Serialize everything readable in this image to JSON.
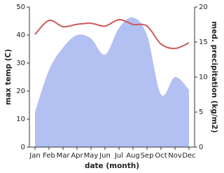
{
  "chart_data": {
    "type": "line-area",
    "xlabel": "date (month)",
    "ylabel": "max temp (C)",
    "y2label": "med. precipitation (kg/m2)",
    "categories": [
      "Jan",
      "Feb",
      "Mar",
      "Apr",
      "May",
      "Jun",
      "Jul",
      "Aug",
      "Sep",
      "Oct",
      "Nov",
      "Dec"
    ],
    "series": [
      {
        "color": "#cd5a5a",
        "kind": "line",
        "axis": "y",
        "values": [
          40.2,
          45.2,
          43,
          43.8,
          44.2,
          43.2,
          45.5,
          43.8,
          43.2,
          36.8,
          35.2,
          37.2
        ]
      },
      {
        "color": "#b3c0f2",
        "kind": "area",
        "axis": "y2",
        "values": [
          5,
          11,
          14.2,
          16,
          15.5,
          13.2,
          17,
          18.5,
          16,
          7.5,
          10,
          8.2
        ]
      }
    ],
    "ylim": [
      0,
      50
    ],
    "yticks": [
      0,
      10,
      20,
      30,
      40,
      50
    ],
    "y2lim": [
      0,
      20
    ],
    "y2ticks": [
      0,
      5,
      10,
      15,
      20
    ]
  }
}
